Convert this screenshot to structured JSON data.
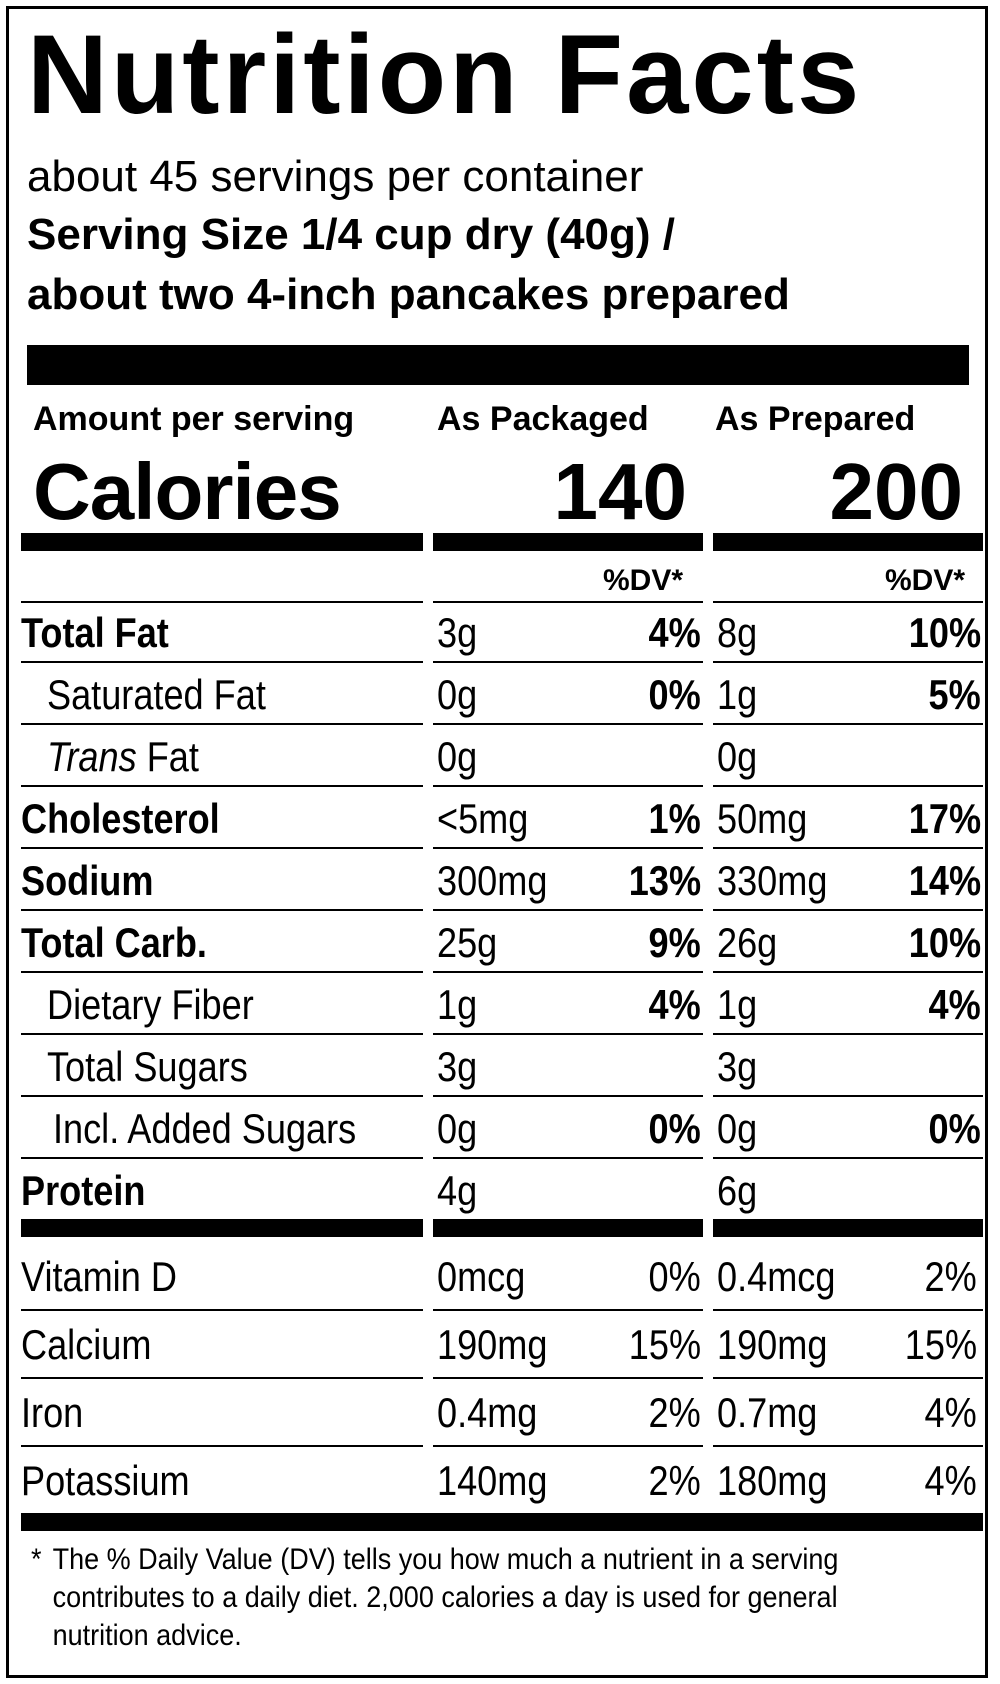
{
  "title": "Nutrition Facts",
  "servings_per_container": "about 45 servings per container",
  "serving_size_line1": "Serving Size 1/4 cup dry (40g) /",
  "serving_size_line2": "about two 4-inch pancakes prepared",
  "header": {
    "amount_per_serving": "Amount per serving",
    "col1": "As Packaged",
    "col2": "As Prepared"
  },
  "calories": {
    "label": "Calories",
    "packaged": "140",
    "prepared": "200"
  },
  "dv_header": {
    "packaged": "%DV*",
    "prepared": "%DV*"
  },
  "nutrients": [
    {
      "name": "Total Fat",
      "bold": true,
      "indent": 0,
      "pkg_amt": "3g",
      "pkg_dv": "4%",
      "prep_amt": "8g",
      "prep_dv": "10%"
    },
    {
      "name": "Saturated Fat",
      "bold": false,
      "indent": 1,
      "pkg_amt": "0g",
      "pkg_dv": "0%",
      "prep_amt": "1g",
      "prep_dv": "5%"
    },
    {
      "name_italic": "Trans",
      "name": " Fat",
      "bold": false,
      "indent": 1,
      "pkg_amt": "0g",
      "pkg_dv": "",
      "prep_amt": "0g",
      "prep_dv": ""
    },
    {
      "name": "Cholesterol",
      "bold": true,
      "indent": 0,
      "pkg_amt": "<5mg",
      "pkg_dv": "1%",
      "prep_amt": "50mg",
      "prep_dv": "17%"
    },
    {
      "name": "Sodium",
      "bold": true,
      "indent": 0,
      "pkg_amt": "300mg",
      "pkg_dv": "13%",
      "prep_amt": "330mg",
      "prep_dv": "14%"
    },
    {
      "name": "Total Carb.",
      "bold": true,
      "indent": 0,
      "pkg_amt": "25g",
      "pkg_dv": "9%",
      "prep_amt": "26g",
      "prep_dv": "10%"
    },
    {
      "name": "Dietary Fiber",
      "bold": false,
      "indent": 1,
      "pkg_amt": "1g",
      "pkg_dv": "4%",
      "prep_amt": "1g",
      "prep_dv": "4%"
    },
    {
      "name": "Total Sugars",
      "bold": false,
      "indent": 1,
      "pkg_amt": "3g",
      "pkg_dv": "",
      "prep_amt": "3g",
      "prep_dv": ""
    },
    {
      "name": "Incl. Added Sugars",
      "bold": false,
      "indent": 2,
      "pkg_amt": "0g",
      "pkg_dv": "0%",
      "prep_amt": "0g",
      "prep_dv": "0%"
    },
    {
      "name": "Protein",
      "bold": true,
      "indent": 0,
      "pkg_amt": "4g",
      "pkg_dv": "",
      "prep_amt": "6g",
      "prep_dv": ""
    }
  ],
  "vitamins": [
    {
      "name": "Vitamin D",
      "pkg_amt": "0mcg",
      "pkg_dv": "0%",
      "prep_amt": "0.4mcg",
      "prep_dv": "2%"
    },
    {
      "name": "Calcium",
      "pkg_amt": "190mg",
      "pkg_dv": "15%",
      "prep_amt": "190mg",
      "prep_dv": "15%"
    },
    {
      "name": "Iron",
      "pkg_amt": "0.4mg",
      "pkg_dv": "2%",
      "prep_amt": "0.7mg",
      "prep_dv": "4%"
    },
    {
      "name": "Potassium",
      "pkg_amt": "140mg",
      "pkg_dv": "2%",
      "prep_amt": "180mg",
      "prep_dv": "4%"
    }
  ],
  "footnote": {
    "star": "*",
    "text": "The % Daily Value (DV) tells you how much a nutrient in a serving contributes to a daily diet. 2,000 calories a day is used for general nutrition advice."
  }
}
